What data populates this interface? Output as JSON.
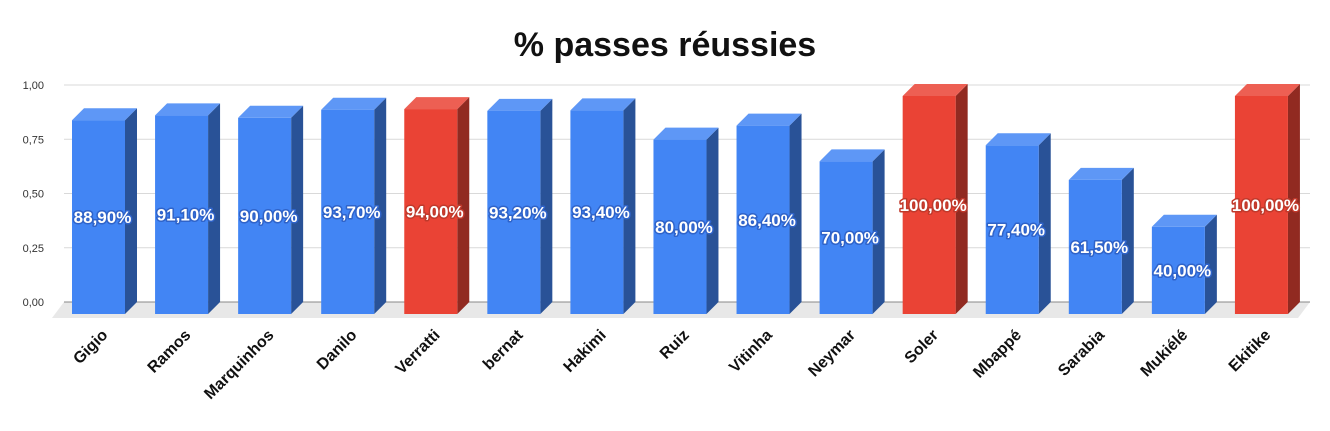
{
  "chart_data": {
    "type": "bar",
    "title": "% passes réussies",
    "xlabel": "",
    "ylabel": "",
    "ylim": [
      0,
      1
    ],
    "yticks": [
      "0,00",
      "0,25",
      "0,50",
      "0,75",
      "1,00"
    ],
    "ytick_values": [
      0,
      0.25,
      0.5,
      0.75,
      1.0
    ],
    "grid": true,
    "legend": "none",
    "categories": [
      "Gigio",
      "Ramos",
      "Marquinhos",
      "Danilo",
      "Verratti",
      "bernat",
      "Hakimi",
      "Ruiz",
      "Vitinha",
      "Neymar",
      "Soler",
      "Mbappé",
      "Sarabia",
      "Mukiélé",
      "Ekitike"
    ],
    "values": [
      0.889,
      0.911,
      0.9,
      0.937,
      0.94,
      0.932,
      0.934,
      0.8,
      0.864,
      0.7,
      1.0,
      0.774,
      0.615,
      0.4,
      1.0
    ],
    "labels": [
      "88,90%",
      "91,10%",
      "90,00%",
      "93,70%",
      "94,00%",
      "93,20%",
      "93,40%",
      "80,00%",
      "86,40%",
      "70,00%",
      "100,00%",
      "77,40%",
      "61,50%",
      "40,00%",
      "100,00%"
    ],
    "highlight": [
      false,
      false,
      false,
      false,
      true,
      false,
      false,
      false,
      false,
      false,
      true,
      false,
      false,
      false,
      true
    ],
    "colors": {
      "bar": "#4285f4",
      "bar_highlight": "#ea4335"
    }
  }
}
